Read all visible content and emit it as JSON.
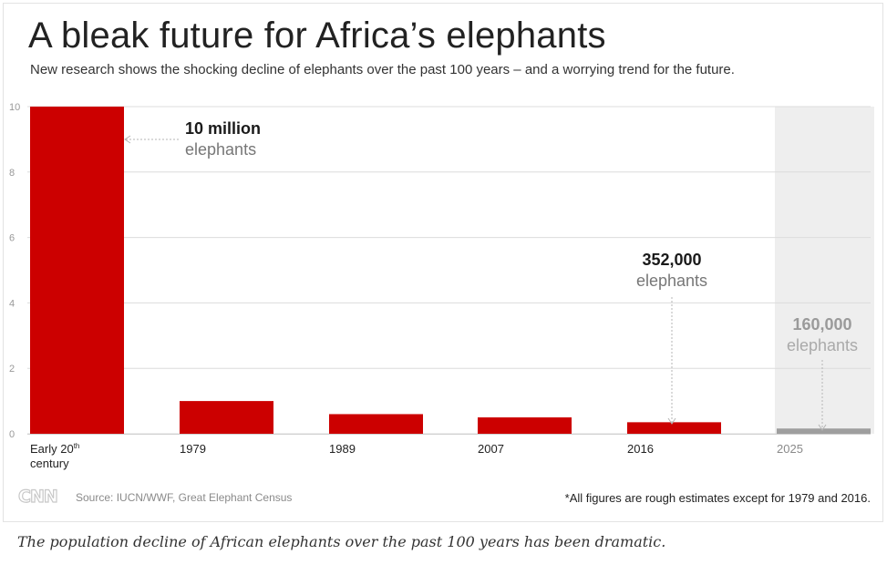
{
  "header": {
    "title": "A bleak future for Africa’s elephants",
    "subtitle": "New research shows the shocking decline of elephants over the past 100 years – and a worrying trend for the future."
  },
  "footer": {
    "logo": "CNN",
    "source": "Source: IUCN/WWF, Great Elephant Census",
    "note": "*All figures are rough estimates except for 1979 and 2016."
  },
  "caption": "The population decline of African elephants over the past 100 years has been dramatic.",
  "chart_data": {
    "type": "bar",
    "title": "A bleak future for Africa’s elephants",
    "subtitle": "New research shows the shocking decline of elephants over the past 100 years – and a worrying trend for the future.",
    "xlabel": "",
    "ylabel": "",
    "ylim": [
      0,
      10
    ],
    "yticks": [
      0,
      2,
      4,
      6,
      8,
      10
    ],
    "grid": true,
    "categories": [
      "Early 20th century",
      "1979",
      "1989",
      "2007",
      "2016",
      "2025"
    ],
    "category_labels": [
      {
        "main": "Early 20",
        "sup": "th",
        "second": "century"
      },
      {
        "main": "1979"
      },
      {
        "main": "1989"
      },
      {
        "main": "2007"
      },
      {
        "main": "2016"
      },
      {
        "main": "2025"
      }
    ],
    "values": [
      10,
      1.0,
      0.6,
      0.5,
      0.352,
      0.16
    ],
    "projected": [
      false,
      false,
      false,
      false,
      false,
      true
    ],
    "colors": {
      "bar": "#cc0000",
      "projected_bar": "#9e9e9e",
      "projected_band": "#eeeeee",
      "grid": "#dcdcdc",
      "tick": "#999999"
    },
    "annotations": [
      {
        "index": 0,
        "value": "10 million",
        "unit": "elephants"
      },
      {
        "index": 4,
        "value": "352,000",
        "unit": "elephants"
      },
      {
        "index": 5,
        "value": "160,000",
        "unit": "elephants",
        "projected": true
      }
    ]
  }
}
